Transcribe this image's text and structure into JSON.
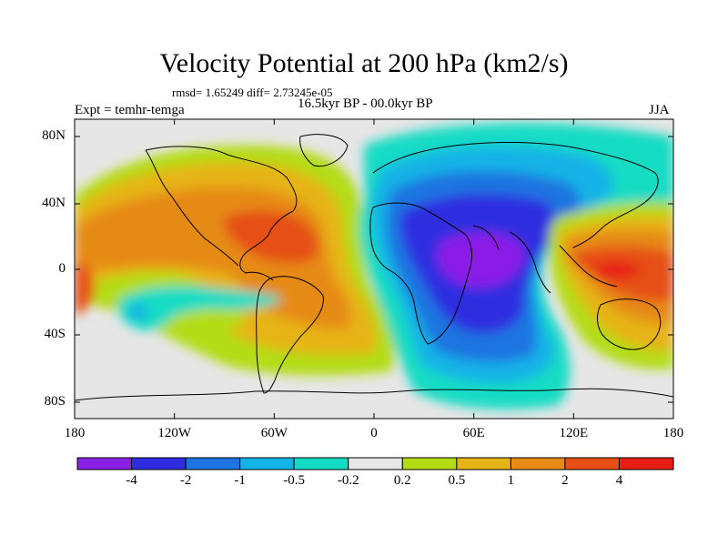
{
  "title": "Velocity Potential at 200 hPa (km2/s)",
  "stats": "rmsd= 1.65249 diff= 2.73245e-05",
  "experiment": "Expt = temhr-temga",
  "period": "16.5kyr BP - 00.0kyr BP",
  "season": "JJA",
  "map": {
    "lat_ticks": [
      "80N",
      "40N",
      "0",
      "40S",
      "80S"
    ],
    "lon_ticks": [
      "180",
      "120W",
      "60W",
      "0",
      "60E",
      "120E",
      "180"
    ]
  },
  "colorbar": {
    "labels": [
      "-4",
      "-2",
      "-1",
      "-0.5",
      "-0.2",
      "0.2",
      "0.5",
      "1",
      "2",
      "4"
    ],
    "colors": [
      "#8a1fe6",
      "#2e2ee0",
      "#1e74e0",
      "#12b3e6",
      "#14dcc4",
      "#e6e6e6",
      "#b4dc14",
      "#e6b414",
      "#e68a14",
      "#e65014",
      "#e61e14"
    ]
  }
}
